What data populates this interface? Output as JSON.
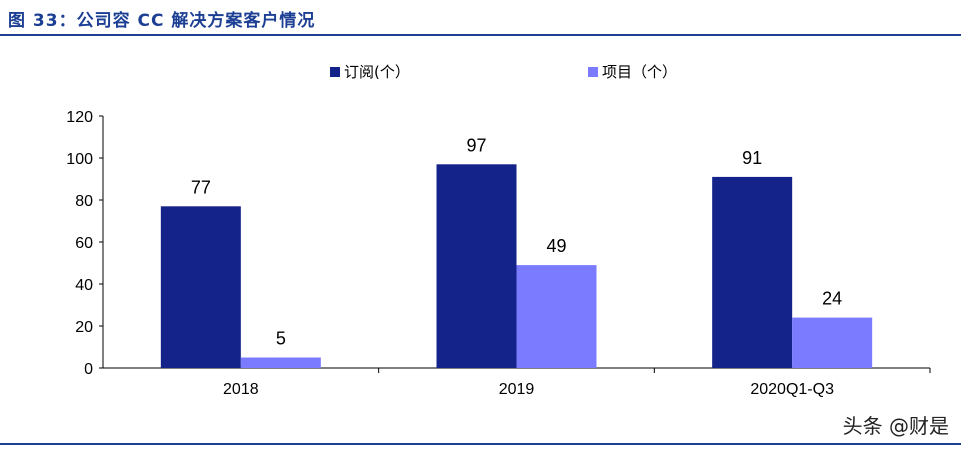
{
  "figure": {
    "title": "图 33：公司容 CC 解决方案客户情况",
    "watermark": "头条 @财是"
  },
  "chart_data": {
    "type": "bar",
    "categories": [
      "2018",
      "2019",
      "2020Q1-Q3"
    ],
    "series": [
      {
        "name": "订阅(个）",
        "values": [
          77,
          97,
          91
        ],
        "color": "#13238a"
      },
      {
        "name": "项目（个）",
        "values": [
          5,
          49,
          24
        ],
        "color": "#7b7bff"
      }
    ],
    "ylim": [
      0,
      120
    ],
    "yticks": [
      0,
      20,
      40,
      60,
      80,
      100,
      120
    ],
    "grid": false,
    "legend_position": "top-center",
    "data_labels": true
  }
}
